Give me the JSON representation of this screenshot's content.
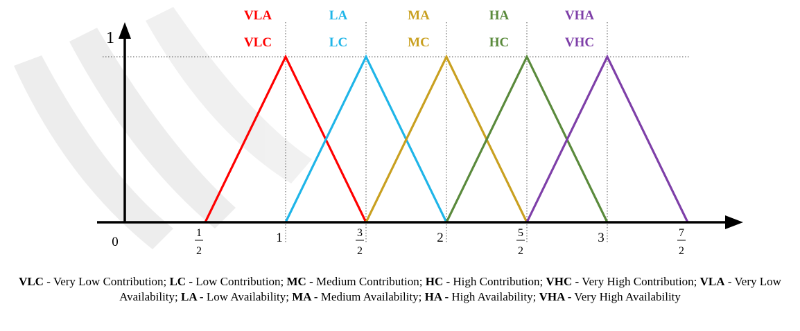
{
  "chart_data": {
    "type": "line",
    "x_axis": {
      "origin_label": "0",
      "tick_labels": [
        {
          "value": 0.5,
          "num": "1",
          "den": "2"
        },
        {
          "value": 1,
          "text": "1"
        },
        {
          "value": 1.5,
          "num": "3",
          "den": "2"
        },
        {
          "value": 2,
          "text": "2"
        },
        {
          "value": 2.5,
          "num": "5",
          "den": "2"
        },
        {
          "value": 3,
          "text": "3"
        },
        {
          "value": 3.5,
          "num": "7",
          "den": "2"
        }
      ]
    },
    "y_axis": {
      "tick_label": "1",
      "max": 1
    },
    "xlim": [
      0,
      3.9
    ],
    "ylim": [
      0,
      1
    ],
    "grid": false,
    "series": [
      {
        "labels": [
          "VLA",
          "VLC"
        ],
        "color": "#ff0000",
        "points": [
          [
            0.5,
            0
          ],
          [
            1,
            1
          ],
          [
            1.5,
            0
          ]
        ]
      },
      {
        "labels": [
          "LA",
          "LC"
        ],
        "color": "#1fb5e8",
        "points": [
          [
            1,
            0
          ],
          [
            1.5,
            1
          ],
          [
            2,
            0
          ]
        ]
      },
      {
        "labels": [
          "MA",
          "MC"
        ],
        "color": "#c9a020",
        "points": [
          [
            1.5,
            0
          ],
          [
            2,
            1
          ],
          [
            2.5,
            0
          ]
        ]
      },
      {
        "labels": [
          "HA",
          "HC"
        ],
        "color": "#5a8a3c",
        "points": [
          [
            2,
            0
          ],
          [
            2.5,
            1
          ],
          [
            3,
            0
          ]
        ]
      },
      {
        "labels": [
          "VHA",
          "VHC"
        ],
        "color": "#7e3fa8",
        "points": [
          [
            2.5,
            0
          ],
          [
            3,
            1
          ],
          [
            3.5,
            0
          ]
        ]
      }
    ]
  },
  "caption": [
    {
      "abbr": "VLC",
      "sep": " - ",
      "text": "Very Low Contribution; "
    },
    {
      "abbr": "LC -",
      "sep": " ",
      "text": "Low Contribution; "
    },
    {
      "abbr": "MC -",
      "sep": " ",
      "text": "Medium Contribution; "
    },
    {
      "abbr": "HC -",
      "sep": " ",
      "text": "High Contribution; "
    },
    {
      "abbr": "VHC -",
      "sep": " ",
      "text": "Very High Contribution; "
    },
    {
      "abbr": "VLA",
      "sep": " - ",
      "text": "Very Low Availability; "
    },
    {
      "abbr": "LA -",
      "sep": " ",
      "text": "Low Availability; "
    },
    {
      "abbr": "MA -",
      "sep": " ",
      "text": "Medium Availability; "
    },
    {
      "abbr": "HA -",
      "sep": " ",
      "text": "High Availability; "
    },
    {
      "abbr": "VHA -",
      "sep": " ",
      "text": "Very High Availability"
    }
  ]
}
